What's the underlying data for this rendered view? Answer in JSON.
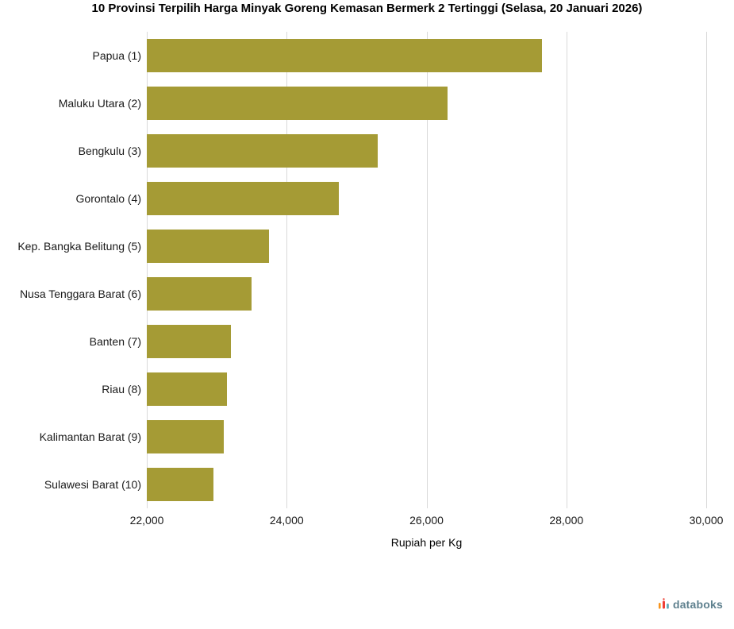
{
  "chart_data": {
    "type": "bar",
    "orientation": "horizontal",
    "title": "10 Provinsi Terpilih Harga Minyak Goreng Kemasan Bermerk 2 Tertinggi (Selasa, 20 Januari 2026)",
    "categories": [
      "Papua (1)",
      "Maluku Utara (2)",
      "Bengkulu (3)",
      "Gorontalo (4)",
      "Kep. Bangka Belitung (5)",
      "Nusa Tenggara Barat (6)",
      "Banten (7)",
      "Riau (8)",
      "Kalimantan Barat (9)",
      "Sulawesi Barat (10)"
    ],
    "values": [
      27650,
      26300,
      25300,
      24750,
      23750,
      23500,
      23200,
      23150,
      23100,
      22950
    ],
    "xlabel": "Rupiah per Kg",
    "ylabel": "",
    "xlim": [
      22000,
      30000
    ],
    "xticks": [
      22000,
      24000,
      26000,
      28000,
      30000
    ],
    "xtick_labels": [
      "22,000",
      "24,000",
      "26,000",
      "28,000",
      "30,000"
    ],
    "bar_color": "#a59b35",
    "grid": true,
    "legend": false
  },
  "branding": {
    "logo_text": "databoks",
    "logo_text_color": "#5e808e",
    "icon_colors": [
      "#f7941d",
      "#ee4036",
      "#59a5b3"
    ]
  }
}
